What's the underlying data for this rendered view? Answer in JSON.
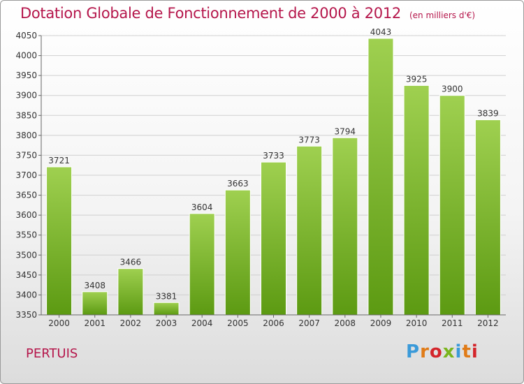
{
  "title": "Dotation Globale de Fonctionnement de 2000 à 2012",
  "subtitle": "(en milliers d'€)",
  "place": "PERTUIS",
  "logo": {
    "text": "Proxiti",
    "colors": [
      "#3a9ad9",
      "#e07b17",
      "#d4252b",
      "#7ab51d",
      "#3a9ad9",
      "#e07b17",
      "#d4252b"
    ]
  },
  "chart_data": {
    "type": "bar",
    "categories": [
      "2000",
      "2001",
      "2002",
      "2003",
      "2004",
      "2005",
      "2006",
      "2007",
      "2008",
      "2009",
      "2010",
      "2011",
      "2012"
    ],
    "values": [
      3721,
      3408,
      3466,
      3381,
      3604,
      3663,
      3733,
      3773,
      3794,
      4043,
      3925,
      3900,
      3839
    ],
    "ylim": [
      3350,
      4050
    ],
    "yticks": [
      3350,
      3400,
      3450,
      3500,
      3550,
      3600,
      3650,
      3700,
      3750,
      3800,
      3850,
      3900,
      3950,
      4000,
      4050
    ],
    "grid": true,
    "bar_color_top": "#9fd050",
    "bar_color_bottom": "#5c9a12"
  }
}
